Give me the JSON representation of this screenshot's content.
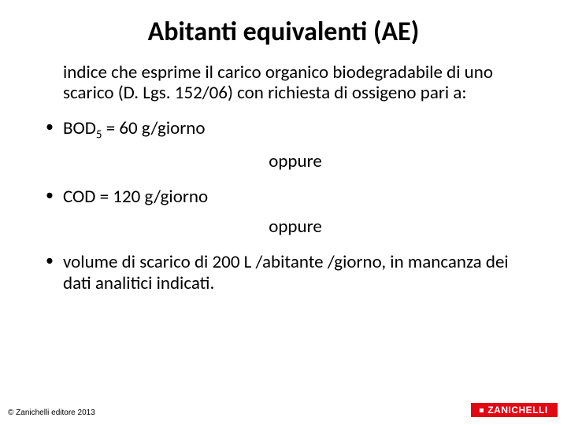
{
  "title": "Abitanti equivalenti (AE)",
  "intro": "indice che esprime il carico organico biodegradabile di uno scarico (D. Lgs. 152/06) con richiesta di ossigeno pari a:",
  "bullets": {
    "b1_pre": "BOD",
    "b1_sub": "5",
    "b1_post": " = 60 g/giorno",
    "opp1": "oppure",
    "b2": "COD = 120 g/giorno",
    "opp2": "oppure",
    "b3": "volume di scarico di 200 L /abitante /giorno, in mancanza dei dati analitici indicati."
  },
  "footer": {
    "copyright": "© Zanichelli editore 2013",
    "logo_text": "ZANICHELLI"
  },
  "colors": {
    "background": "#ffffff",
    "text": "#000000",
    "logo_bg": "#e30613",
    "logo_fg": "#ffffff"
  }
}
